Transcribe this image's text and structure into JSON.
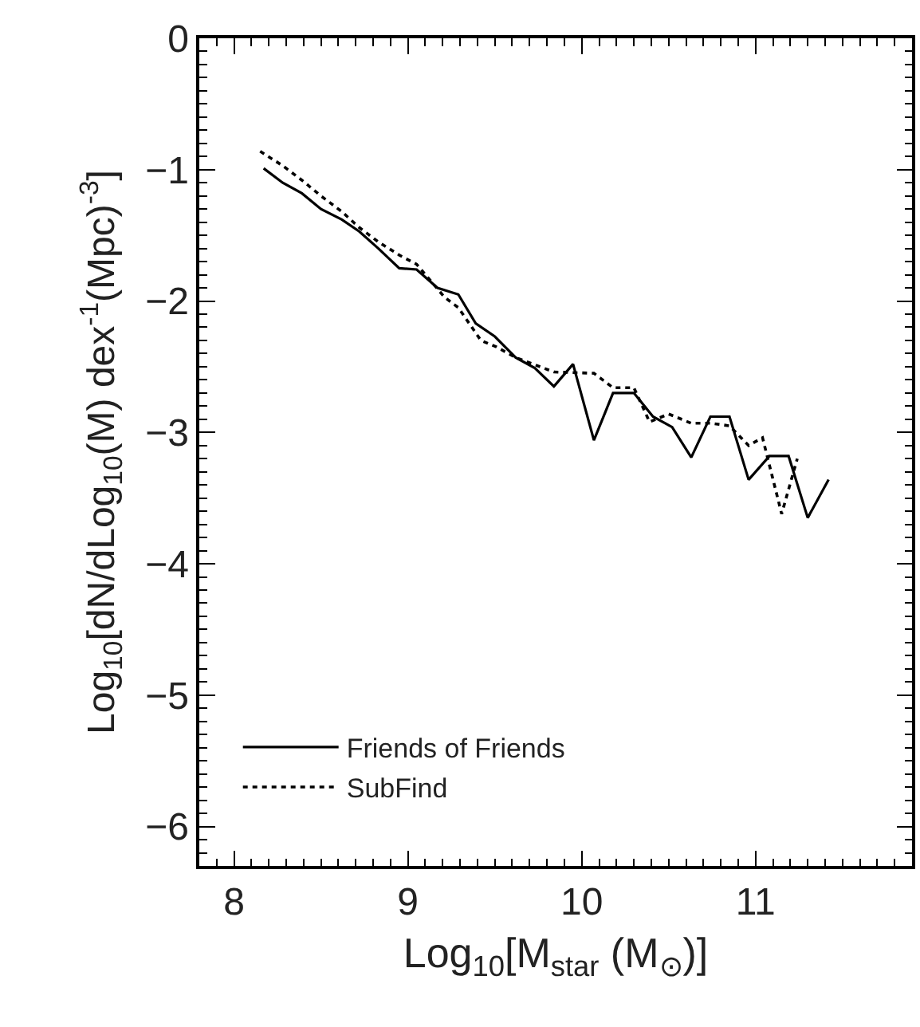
{
  "chart_data": {
    "type": "line",
    "xlabel": "Log$_{10}$[M$_{star}$ (M$_{⊙}$)]",
    "ylabel": "Log$_{10}$[dN/dLog$_{10}$(M) dex$^{-1}$(Mpc)$^{-3}$]",
    "xlim": [
      7.8,
      11.9
    ],
    "xticks": [
      8,
      9,
      10,
      11
    ],
    "ylim": [
      -6.3,
      0
    ],
    "yticks": [
      0,
      -1,
      -2,
      -3,
      -4,
      -5,
      -6
    ],
    "grid": false,
    "legend": "bottom left",
    "marker": "none",
    "series": [
      {
        "name": "Friends of Friends",
        "color": "#000000",
        "line_style": "solid",
        "x": [
          8.17,
          8.28,
          8.39,
          8.5,
          8.62,
          8.72,
          8.83,
          8.95,
          9.05,
          9.17,
          9.29,
          9.39,
          9.5,
          9.62,
          9.73,
          9.84,
          9.95,
          10.07,
          10.18,
          10.3,
          10.41,
          10.52,
          10.63,
          10.74,
          10.85,
          10.96,
          11.08,
          11.19,
          11.3,
          11.42
        ],
        "values": [
          -0.99,
          -1.1,
          -1.18,
          -1.3,
          -1.38,
          -1.47,
          -1.6,
          -1.75,
          -1.76,
          -1.9,
          -1.95,
          -2.17,
          -2.27,
          -2.43,
          -2.51,
          -2.65,
          -2.48,
          -3.06,
          -2.7,
          -2.7,
          -2.88,
          -2.96,
          -3.19,
          -2.88,
          -2.88,
          -3.36,
          -3.18,
          -3.18,
          -3.65,
          -3.36
        ]
      },
      {
        "name": "SubFind",
        "color": "#000000",
        "line_style": "dotted",
        "x": [
          8.15,
          8.28,
          8.39,
          8.5,
          8.62,
          8.72,
          8.83,
          8.95,
          9.05,
          9.21,
          9.29,
          9.42,
          9.51,
          9.62,
          9.84,
          10.07,
          10.18,
          10.3,
          10.39,
          10.5,
          10.63,
          10.74,
          10.85,
          10.96,
          11.04,
          11.15,
          11.24
        ],
        "values": [
          -0.86,
          -0.97,
          -1.08,
          -1.2,
          -1.32,
          -1.44,
          -1.55,
          -1.65,
          -1.72,
          -1.97,
          -2.05,
          -2.3,
          -2.35,
          -2.43,
          -2.54,
          -2.55,
          -2.66,
          -2.66,
          -2.92,
          -2.86,
          -2.93,
          -2.93,
          -2.95,
          -3.1,
          -3.04,
          -3.62,
          -3.2
        ]
      }
    ]
  }
}
